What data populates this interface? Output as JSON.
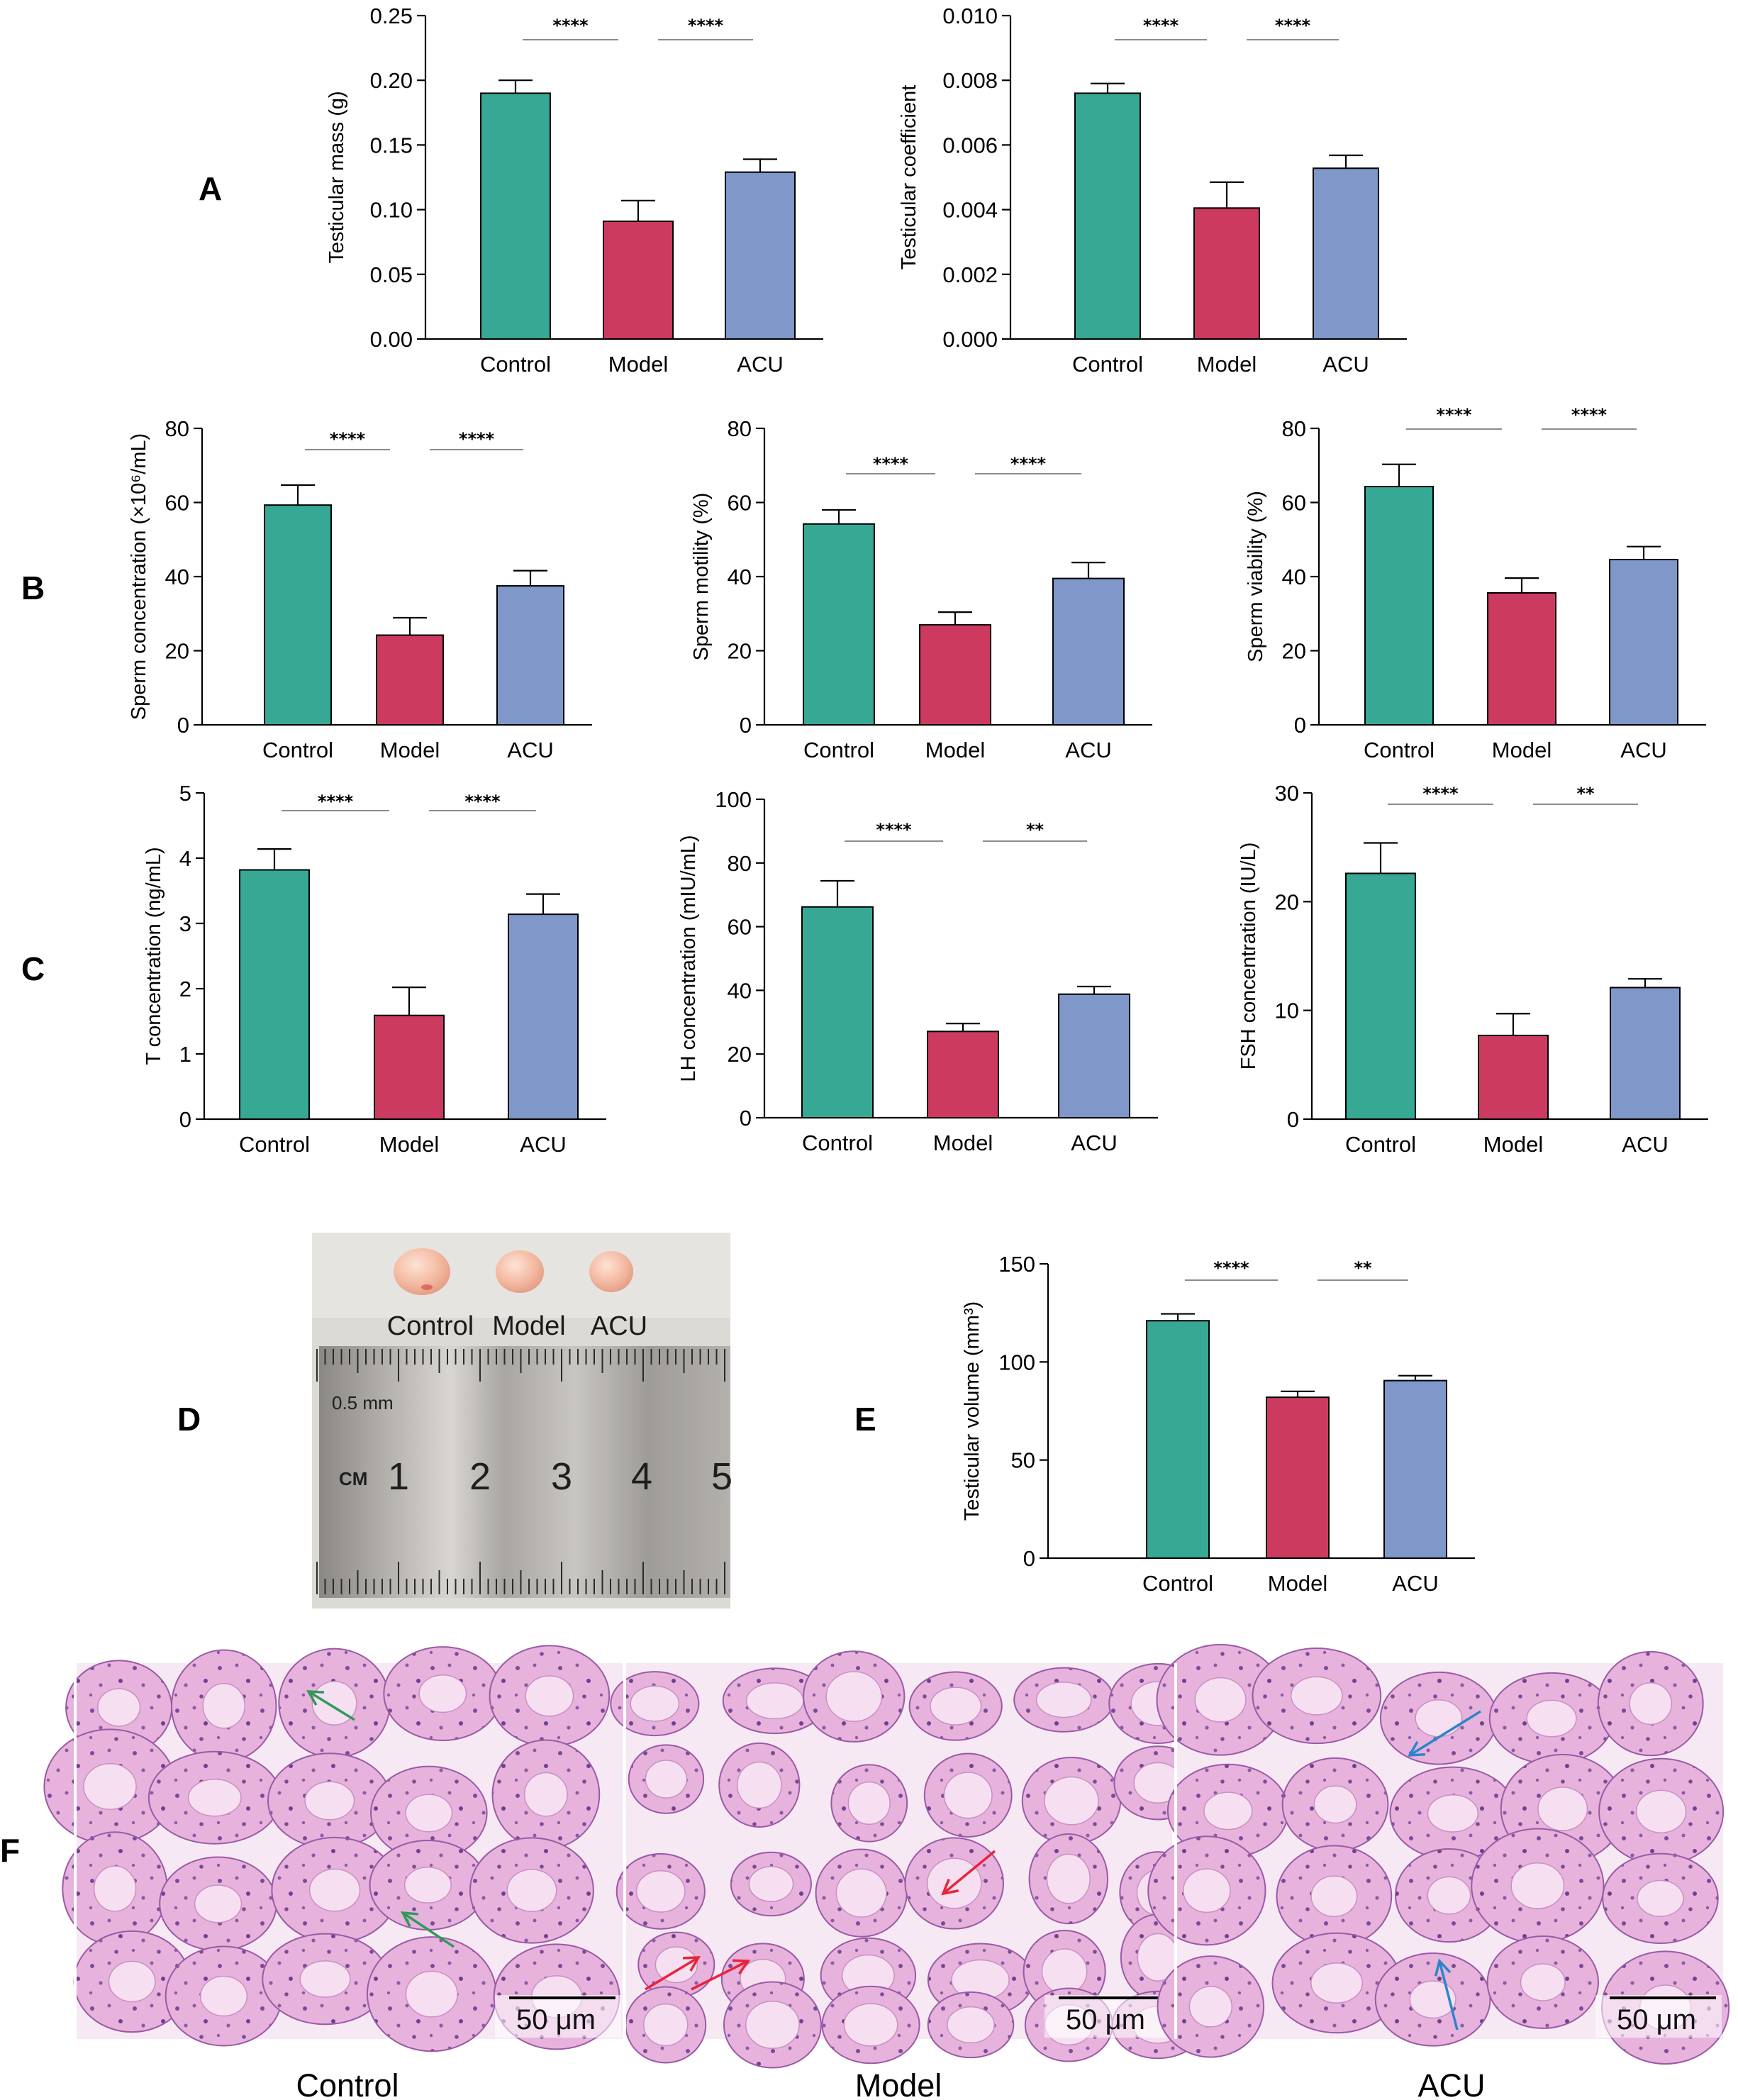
{
  "colors": {
    "control": "#37a894",
    "model": "#cc3a60",
    "acu": "#7f97c9",
    "axis": "#000000",
    "he_pink": "#d88fc9",
    "he_bg": "#f7e9f4",
    "arrow_control": "#2f9a5a",
    "arrow_model": "#e8243a",
    "arrow_acu": "#2a86c9"
  },
  "panels": {
    "A": "A",
    "B": "B",
    "C": "C",
    "D": "D",
    "E": "E",
    "F": "F"
  },
  "chart_data": [
    {
      "id": "A1",
      "type": "bar",
      "panel": "A",
      "categories": [
        "Control",
        "Model",
        "ACU"
      ],
      "values": [
        0.19,
        0.091,
        0.129
      ],
      "errors": [
        0.01,
        0.016,
        0.01
      ],
      "ylabel": "Testicular mass (g)",
      "ylim": [
        0,
        0.25
      ],
      "yticks": [
        "0.00",
        "0.05",
        "0.10",
        "0.15",
        "0.20",
        "0.25"
      ],
      "sig": [
        {
          "from": 0,
          "to": 1,
          "label": "****"
        },
        {
          "from": 1,
          "to": 2,
          "label": "****"
        }
      ]
    },
    {
      "id": "A2",
      "type": "bar",
      "panel": "A",
      "categories": [
        "Control",
        "Model",
        "ACU"
      ],
      "values": [
        0.0076,
        0.00405,
        0.00528
      ],
      "errors": [
        0.0003,
        0.0008,
        0.0004
      ],
      "ylabel": "Testicular coefficient",
      "ylim": [
        0,
        0.01
      ],
      "yticks": [
        "0.000",
        "0.002",
        "0.004",
        "0.006",
        "0.008",
        "0.010"
      ],
      "sig": [
        {
          "from": 0,
          "to": 1,
          "label": "****"
        },
        {
          "from": 1,
          "to": 2,
          "label": "****"
        }
      ]
    },
    {
      "id": "B1",
      "type": "bar",
      "panel": "B",
      "categories": [
        "Control",
        "Model",
        "ACU"
      ],
      "values": [
        59.3,
        24.2,
        37.5
      ],
      "errors": [
        5.4,
        4.7,
        4.1
      ],
      "ylabel": "Sperm concentration (×10⁶/mL)",
      "ylim": [
        0,
        80
      ],
      "yticks": [
        "0",
        "20",
        "40",
        "60",
        "80"
      ],
      "sig": [
        {
          "from": 0,
          "to": 1,
          "label": "****"
        },
        {
          "from": 1,
          "to": 2,
          "label": "****"
        }
      ]
    },
    {
      "id": "B2",
      "type": "bar",
      "panel": "B",
      "categories": [
        "Control",
        "Model",
        "ACU"
      ],
      "values": [
        54.2,
        27.0,
        39.5
      ],
      "errors": [
        3.8,
        3.4,
        4.3
      ],
      "ylabel": "Sperm motility  (%)",
      "ylim": [
        0,
        80
      ],
      "yticks": [
        "0",
        "20",
        "40",
        "60",
        "80"
      ],
      "sig": [
        {
          "from": 0,
          "to": 1,
          "label": "****"
        },
        {
          "from": 1,
          "to": 2,
          "label": "****"
        }
      ]
    },
    {
      "id": "B3",
      "type": "bar",
      "panel": "B",
      "categories": [
        "Control",
        "Model",
        "ACU"
      ],
      "values": [
        64.3,
        35.6,
        44.6
      ],
      "errors": [
        6.0,
        4.0,
        3.5
      ],
      "ylabel": "Sperm viability  (%)",
      "ylim": [
        0,
        80
      ],
      "yticks": [
        "0",
        "20",
        "40",
        "60",
        "80"
      ],
      "sig": [
        {
          "from": 0,
          "to": 1,
          "label": "****"
        },
        {
          "from": 1,
          "to": 2,
          "label": "****"
        }
      ]
    },
    {
      "id": "C1",
      "type": "bar",
      "panel": "C",
      "categories": [
        "Control",
        "Model",
        "ACU"
      ],
      "values": [
        3.82,
        1.59,
        3.14
      ],
      "errors": [
        0.32,
        0.43,
        0.31
      ],
      "ylabel": "T concentration (ng/mL)",
      "ylim": [
        0,
        5
      ],
      "yticks": [
        "0",
        "1",
        "2",
        "3",
        "4",
        "5"
      ],
      "sig": [
        {
          "from": 0,
          "to": 1,
          "label": "****"
        },
        {
          "from": 1,
          "to": 2,
          "label": "****"
        }
      ]
    },
    {
      "id": "C2",
      "type": "bar",
      "panel": "C",
      "categories": [
        "Control",
        "Model",
        "ACU"
      ],
      "values": [
        66.2,
        27.1,
        38.8
      ],
      "errors": [
        8.2,
        2.5,
        2.4
      ],
      "ylabel": "LH concentration (mIU/mL)",
      "ylim": [
        0,
        100
      ],
      "yticks": [
        "0",
        "20",
        "40",
        "60",
        "80",
        "100"
      ],
      "sig": [
        {
          "from": 0,
          "to": 1,
          "label": "****"
        },
        {
          "from": 1,
          "to": 2,
          "label": "**"
        }
      ]
    },
    {
      "id": "C3",
      "type": "bar",
      "panel": "C",
      "categories": [
        "Control",
        "Model",
        "ACU"
      ],
      "values": [
        22.6,
        7.7,
        12.1
      ],
      "errors": [
        2.8,
        2.0,
        0.8
      ],
      "ylabel": "FSH concentration  (IU/L)",
      "ylim": [
        0,
        30
      ],
      "yticks": [
        "0",
        "10",
        "20",
        "30"
      ],
      "sig": [
        {
          "from": 0,
          "to": 1,
          "label": "****"
        },
        {
          "from": 1,
          "to": 2,
          "label": "**"
        }
      ]
    },
    {
      "id": "E1",
      "type": "bar",
      "panel": "E",
      "categories": [
        "Control",
        "Model",
        "ACU"
      ],
      "values": [
        121.0,
        82.0,
        90.5
      ],
      "errors": [
        3.5,
        3.0,
        2.5
      ],
      "ylabel": "Testicular volume (mm³)",
      "ylim": [
        0,
        150
      ],
      "yticks": [
        "0",
        "50",
        "100",
        "150"
      ],
      "sig": [
        {
          "from": 0,
          "to": 1,
          "label": "****"
        },
        {
          "from": 1,
          "to": 2,
          "label": "**"
        }
      ]
    }
  ],
  "photo": {
    "labels": [
      "Control",
      "Model",
      "ACU"
    ],
    "ruler_small": "0.5 mm",
    "ruler_cm": "CM",
    "ruler_numbers": [
      "1",
      "2",
      "3",
      "4",
      "5"
    ]
  },
  "histology": {
    "groups": [
      "Control",
      "Model",
      "ACU"
    ],
    "scale_bar": "50 μm"
  }
}
